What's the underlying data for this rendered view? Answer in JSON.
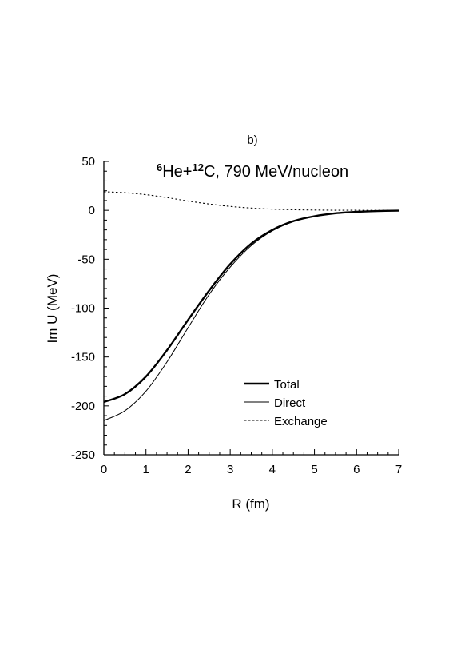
{
  "panel_label": "b)",
  "chart_data": {
    "type": "line",
    "title": {
      "a1": "6",
      "n1": "He+",
      "a2": "12",
      "n2": "C, 790 MeV/nucleon"
    },
    "xlabel": "R (fm)",
    "ylabel": "Im U (MeV)",
    "xlim": [
      0,
      7
    ],
    "ylim": [
      -250,
      50
    ],
    "xticks": [
      0,
      1,
      2,
      3,
      4,
      5,
      6,
      7
    ],
    "yticks": [
      50,
      0,
      -50,
      -100,
      -150,
      -200,
      -250
    ],
    "grid": false,
    "legend_position": "lower-right",
    "series": [
      {
        "name": "Total",
        "style": "thick",
        "x": [
          0.0,
          0.5,
          1.0,
          1.5,
          2.0,
          2.5,
          3.0,
          3.5,
          4.0,
          4.5,
          5.0,
          5.5,
          6.0,
          6.5,
          7.0
        ],
        "y": [
          -196,
          -188,
          -170,
          -143,
          -112,
          -82,
          -55,
          -34,
          -20,
          -11,
          -6,
          -3,
          -1.5,
          -0.7,
          -0.3
        ]
      },
      {
        "name": "Direct",
        "style": "thin",
        "x": [
          0.0,
          0.5,
          1.0,
          1.5,
          2.0,
          2.5,
          3.0,
          3.5,
          4.0,
          4.5,
          5.0,
          5.5,
          6.0,
          6.5,
          7.0
        ],
        "y": [
          -215,
          -205,
          -185,
          -155,
          -120,
          -86,
          -58,
          -36,
          -21,
          -11.5,
          -6.2,
          -3.1,
          -1.6,
          -0.7,
          -0.3
        ]
      },
      {
        "name": "Exchange",
        "style": "dotted",
        "x": [
          0.0,
          0.5,
          1.0,
          1.5,
          2.0,
          2.5,
          3.0,
          3.5,
          4.0,
          4.5,
          5.0,
          5.5,
          6.0,
          6.5,
          7.0
        ],
        "y": [
          19,
          18,
          16,
          13,
          9.5,
          6.5,
          4,
          2.3,
          1.2,
          0.6,
          0.3,
          0.1,
          0.05,
          0.02,
          0
        ]
      }
    ]
  }
}
